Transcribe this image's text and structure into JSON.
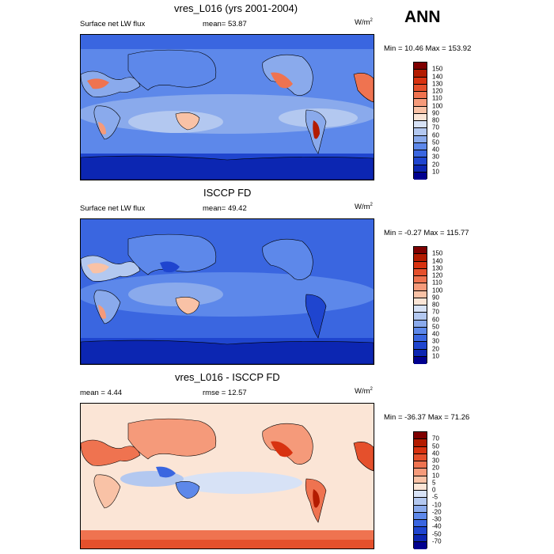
{
  "header": {
    "season": "ANN"
  },
  "panels": [
    {
      "title": "vres_L016 (yrs 2001-2004)",
      "left_label": "Surface net LW flux",
      "mid_label": "mean=  53.87",
      "units_base": "W/m",
      "units_exp": "2",
      "minmax": "Min =  10.46 Max = 153.92",
      "scale": "abs"
    },
    {
      "title": "ISCCP FD",
      "left_label": "Surface net LW flux",
      "mid_label": "mean=  49.42",
      "units_base": "W/m",
      "units_exp": "2",
      "minmax": "Min =  -0.27 Max = 115.77",
      "scale": "abs"
    },
    {
      "title": "vres_L016 - ISCCP FD",
      "left_label": "mean =   4.44",
      "mid_label": "rmse =  12.57",
      "units_base": "W/m",
      "units_exp": "2",
      "minmax": "Min = -36.37 Max =  71.26",
      "scale": "diff"
    }
  ],
  "scales": {
    "abs": {
      "labels": [
        "150",
        "140",
        "130",
        "120",
        "110",
        "100",
        "90",
        "80",
        "70",
        "60",
        "50",
        "40",
        "30",
        "20",
        "10"
      ],
      "colors": [
        "#7f0000",
        "#b31b00",
        "#d83210",
        "#e5502c",
        "#ef7350",
        "#f59a7a",
        "#f9c2a6",
        "#fbe5d6",
        "#d7e2f6",
        "#b3c8f0",
        "#8aaaec",
        "#5d88ea",
        "#3a66e0",
        "#1f45cf",
        "#0c26b2",
        "#00008f"
      ]
    },
    "diff": {
      "labels": [
        "70",
        "50",
        "40",
        "30",
        "20",
        "10",
        "5",
        "0",
        "-5",
        "-10",
        "-20",
        "-30",
        "-40",
        "-50",
        "-70"
      ],
      "colors": [
        "#7f0000",
        "#b31b00",
        "#d83210",
        "#e5502c",
        "#ef7350",
        "#f59a7a",
        "#f9c2a6",
        "#fbe5d6",
        "#d7e2f6",
        "#b3c8f0",
        "#8aaaec",
        "#5d88ea",
        "#3a66e0",
        "#1f45cf",
        "#0c26b2",
        "#00008f"
      ]
    }
  },
  "chart_data": [
    {
      "type": "heatmap",
      "title": "vres_L016 (yrs 2001-2004)",
      "subtitle": "Surface net LW flux",
      "units": "W/m2",
      "mean": 53.87,
      "min": 10.46,
      "max": 153.92,
      "levels": [
        10,
        20,
        30,
        40,
        50,
        60,
        70,
        80,
        90,
        100,
        110,
        120,
        130,
        140,
        150
      ]
    },
    {
      "type": "heatmap",
      "title": "ISCCP FD",
      "subtitle": "Surface net LW flux",
      "units": "W/m2",
      "mean": 49.42,
      "min": -0.27,
      "max": 115.77,
      "levels": [
        10,
        20,
        30,
        40,
        50,
        60,
        70,
        80,
        90,
        100,
        110,
        120,
        130,
        140,
        150
      ]
    },
    {
      "type": "heatmap",
      "title": "vres_L016 - ISCCP FD",
      "units": "W/m2",
      "mean": 4.44,
      "rmse": 12.57,
      "min": -36.37,
      "max": 71.26,
      "levels": [
        -70,
        -50,
        -40,
        -30,
        -20,
        -10,
        -5,
        0,
        5,
        10,
        20,
        30,
        40,
        50,
        70
      ]
    }
  ]
}
